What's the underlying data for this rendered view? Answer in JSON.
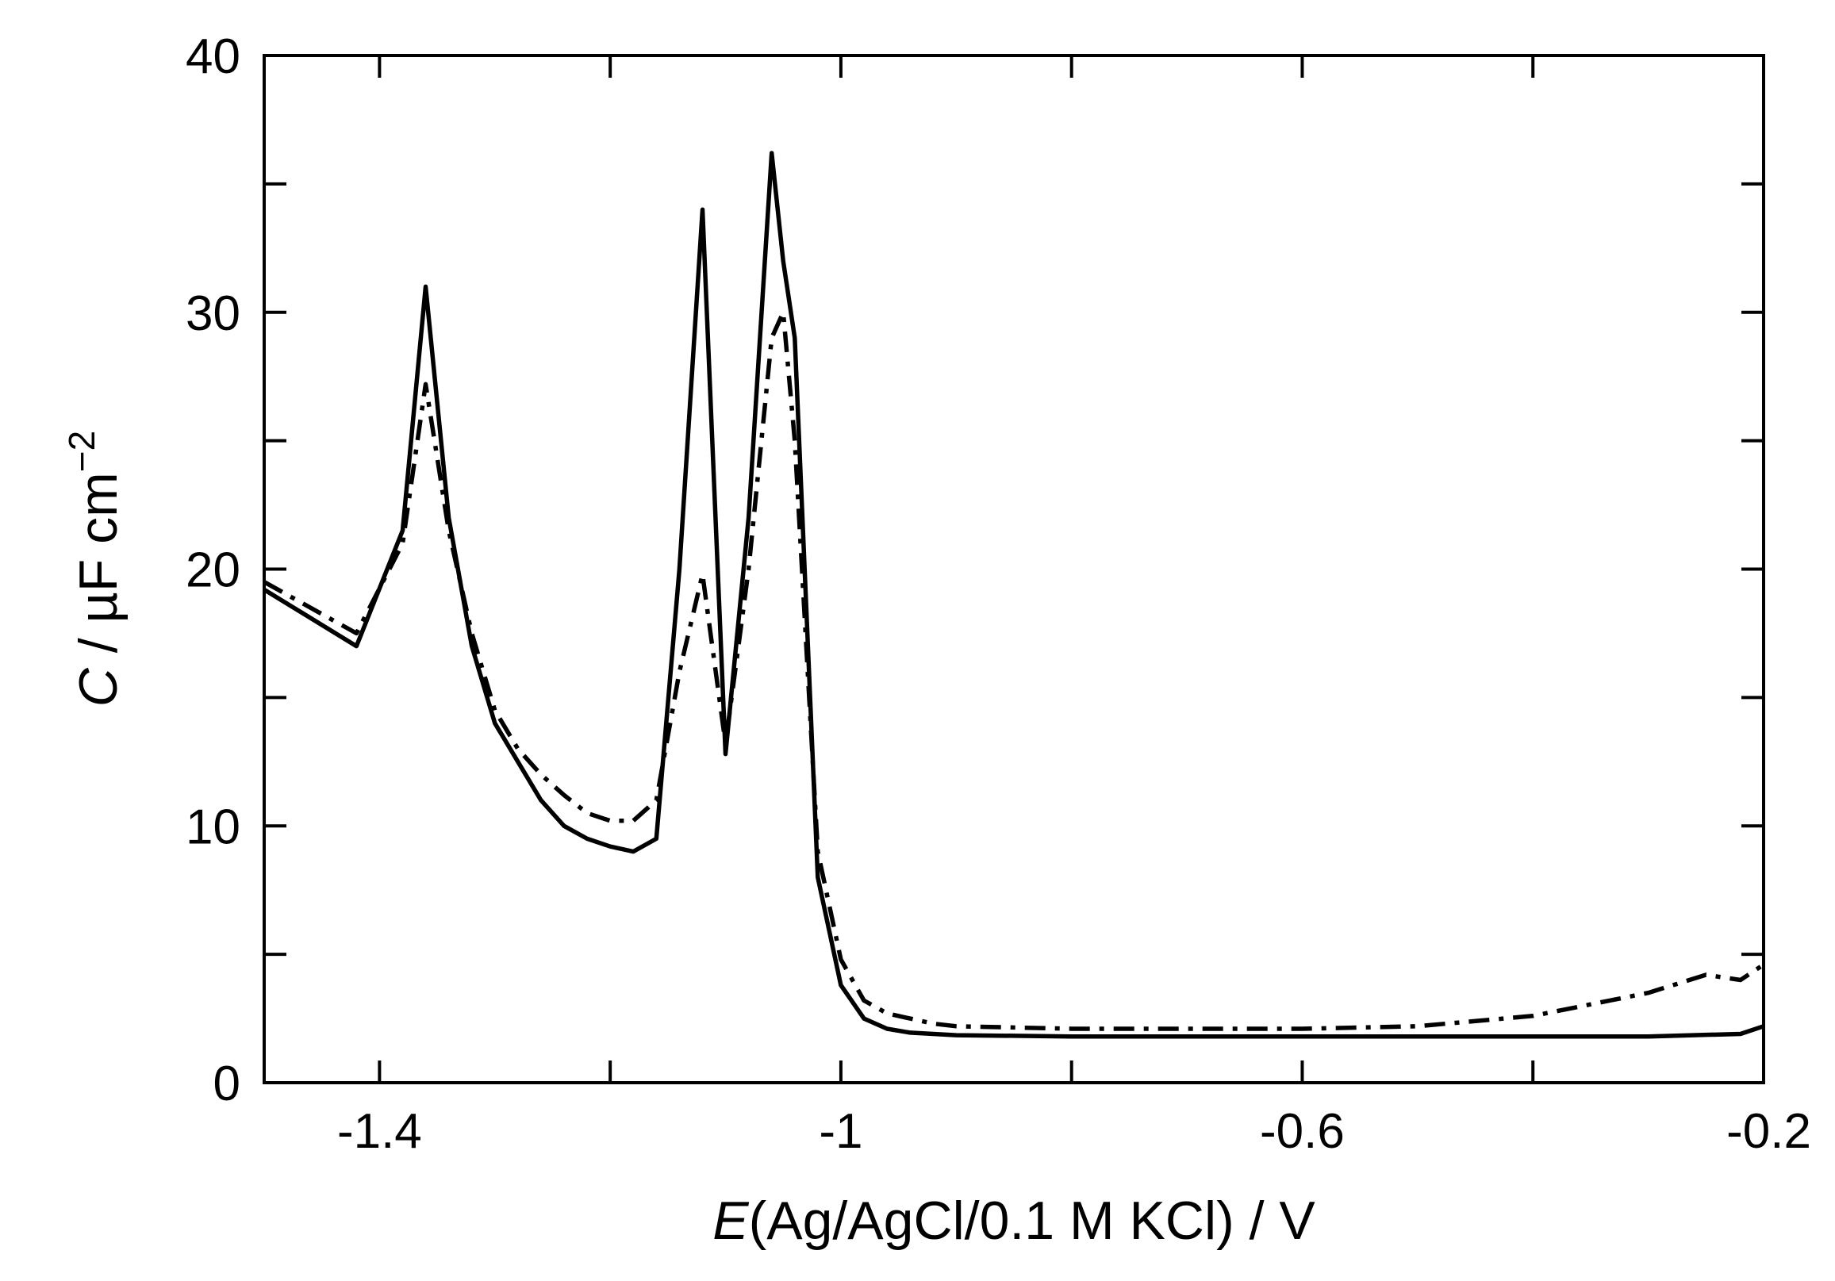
{
  "chart_data": {
    "type": "line",
    "xlabel_italic": "E",
    "xlabel_rest": "(Ag/AgCl/0.1 M KCl) / V",
    "ylabel_italic": "C",
    "ylabel_rest": " / µF cm",
    "ylabel_sup": "−2",
    "xlim": [
      -1.5,
      -0.2
    ],
    "ylim": [
      0,
      40
    ],
    "x_major_ticks": [
      -1.4,
      -1.2,
      -1.0,
      -0.8,
      -0.6,
      -0.4,
      -0.2
    ],
    "x_tick_labels": [
      {
        "value": -1.4,
        "label": "-1.4"
      },
      {
        "value": -1.0,
        "label": "-1"
      },
      {
        "value": -0.6,
        "label": "-0.6"
      },
      {
        "value": -0.2,
        "label": "-0.2"
      }
    ],
    "y_major_ticks": [
      0,
      5,
      10,
      15,
      20,
      25,
      30,
      35,
      40
    ],
    "y_tick_labels": [
      {
        "value": 0,
        "label": "0"
      },
      {
        "value": 10,
        "label": "10"
      },
      {
        "value": 20,
        "label": "20"
      },
      {
        "value": 30,
        "label": "30"
      },
      {
        "value": 40,
        "label": "40"
      }
    ],
    "grid": false,
    "series": [
      {
        "style": "solid",
        "x": [
          -1.5,
          -1.42,
          -1.38,
          -1.36,
          -1.34,
          -1.32,
          -1.3,
          -1.28,
          -1.26,
          -1.24,
          -1.22,
          -1.2,
          -1.18,
          -1.16,
          -1.14,
          -1.12,
          -1.1,
          -1.08,
          -1.06,
          -1.05,
          -1.04,
          -1.02,
          -1.0,
          -0.98,
          -0.96,
          -0.94,
          -0.92,
          -0.9,
          -0.8,
          -0.7,
          -0.6,
          -0.5,
          -0.4,
          -0.3,
          -0.22,
          -0.2
        ],
        "y": [
          19.2,
          17.0,
          21.5,
          31.0,
          22.0,
          17.0,
          14.0,
          12.5,
          11.0,
          10.0,
          9.5,
          9.2,
          9.0,
          9.5,
          20.0,
          34.0,
          12.8,
          22.0,
          36.2,
          32.0,
          29.0,
          8.0,
          3.8,
          2.5,
          2.1,
          1.95,
          1.9,
          1.85,
          1.8,
          1.8,
          1.8,
          1.8,
          1.8,
          1.8,
          1.9,
          2.2
        ]
      },
      {
        "style": "dash-dot",
        "x": [
          -1.5,
          -1.42,
          -1.38,
          -1.36,
          -1.34,
          -1.32,
          -1.3,
          -1.28,
          -1.26,
          -1.24,
          -1.22,
          -1.2,
          -1.18,
          -1.16,
          -1.14,
          -1.12,
          -1.1,
          -1.08,
          -1.06,
          -1.05,
          -1.04,
          -1.02,
          -1.0,
          -0.98,
          -0.96,
          -0.94,
          -0.92,
          -0.9,
          -0.8,
          -0.7,
          -0.6,
          -0.5,
          -0.4,
          -0.3,
          -0.25,
          -0.22,
          -0.2
        ],
        "y": [
          19.5,
          17.5,
          21.0,
          27.2,
          21.5,
          17.5,
          14.5,
          13.0,
          12.0,
          11.2,
          10.5,
          10.2,
          10.2,
          11.0,
          16.0,
          19.8,
          13.2,
          20.0,
          29.0,
          30.0,
          25.0,
          9.0,
          4.8,
          3.2,
          2.7,
          2.5,
          2.3,
          2.2,
          2.1,
          2.1,
          2.1,
          2.2,
          2.6,
          3.5,
          4.2,
          4.0,
          4.6
        ]
      }
    ]
  }
}
